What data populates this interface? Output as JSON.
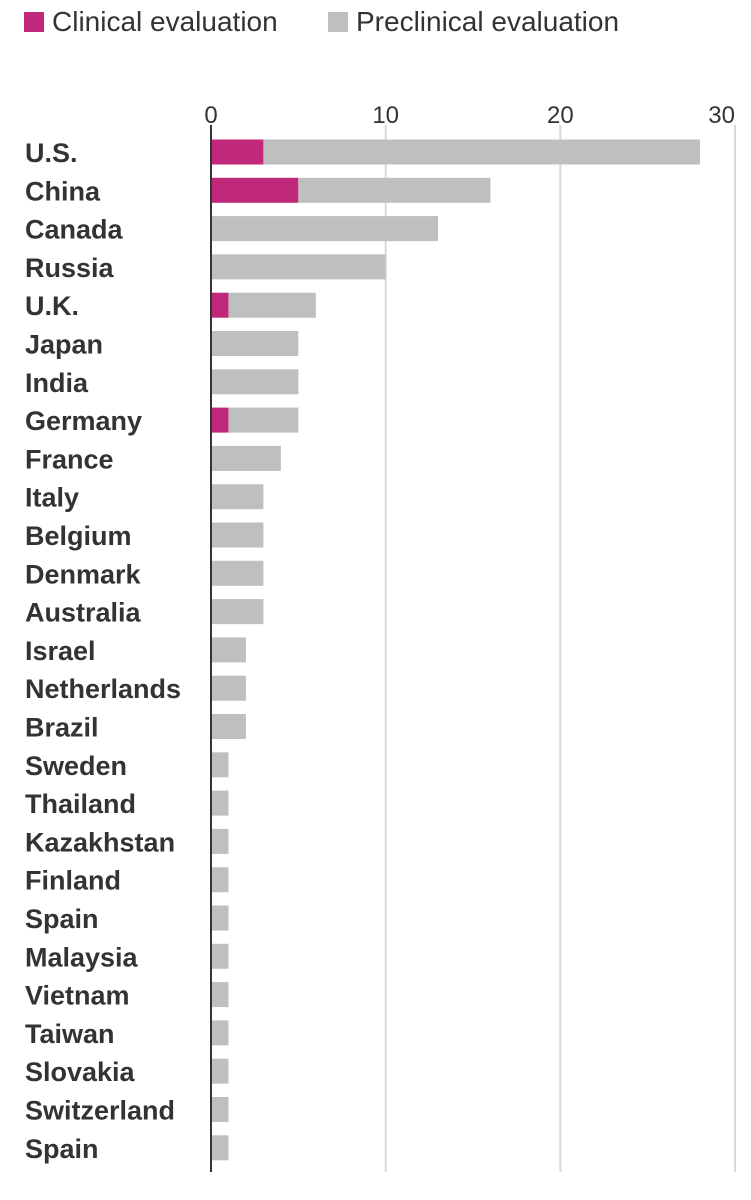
{
  "colors": {
    "clinical": "#c0297a",
    "preclinical": "#bfbfbf",
    "grid": "#d9d9d9",
    "axis": "#333333",
    "text": "#333333"
  },
  "legend": {
    "items": [
      {
        "label": "Clinical evaluation",
        "color": "#c0297a"
      },
      {
        "label": "Preclinical evaluation",
        "color": "#bfbfbf"
      }
    ]
  },
  "chart_data": {
    "type": "bar",
    "orientation": "horizontal",
    "stacked": true,
    "categories": [
      "U.S.",
      "China",
      "Canada",
      "Russia",
      "U.K.",
      "Japan",
      "India",
      "Germany",
      "France",
      "Italy",
      "Belgium",
      "Denmark",
      "Australia",
      "Israel",
      "Netherlands",
      "Brazil",
      "Sweden",
      "Thailand",
      "Kazakhstan",
      "Finland",
      "Spain",
      "Malaysia",
      "Vietnam",
      "Taiwan",
      "Slovakia",
      "Switzerland",
      "Spain"
    ],
    "series": [
      {
        "name": "Clinical evaluation",
        "values": [
          3,
          5,
          0,
          0,
          1,
          0,
          0,
          1,
          0,
          0,
          0,
          0,
          0,
          0,
          0,
          0,
          0,
          0,
          0,
          0,
          0,
          0,
          0,
          0,
          0,
          0,
          0
        ]
      },
      {
        "name": "Preclinical evaluation",
        "values": [
          25,
          11,
          13,
          10,
          5,
          5,
          5,
          4,
          4,
          3,
          3,
          3,
          3,
          2,
          2,
          2,
          1,
          1,
          1,
          1,
          1,
          1,
          1,
          1,
          1,
          1,
          1
        ]
      }
    ],
    "xlim": [
      0,
      30
    ],
    "xticks": [
      "0",
      "10",
      "20",
      "30"
    ],
    "xtick_values": [
      0,
      10,
      20,
      30
    ],
    "grid": true,
    "legend_position": "top-left",
    "title": "",
    "xlabel": "",
    "ylabel": ""
  }
}
